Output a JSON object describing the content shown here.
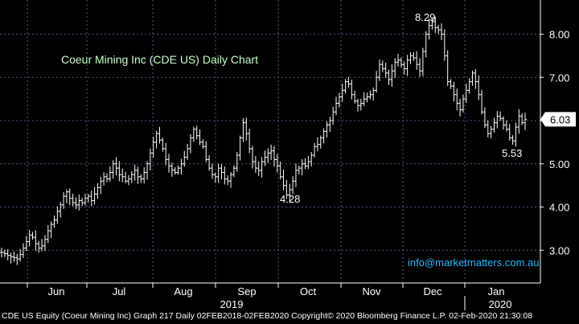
{
  "chart_data": {
    "type": "ohlc",
    "title": "Coeur Mining Inc (CDE US) Daily Chart",
    "ylim": [
      2.3,
      8.9
    ],
    "yticks": [
      "3.00",
      "4.00",
      "5.00",
      "6.00",
      "7.00",
      "8.00"
    ],
    "months": [
      "Jun",
      "Jul",
      "Aug",
      "Sep",
      "Oct",
      "Nov",
      "Dec",
      "Jan"
    ],
    "years": [
      "2019",
      "2020"
    ],
    "last_price": "6.03",
    "annotations": [
      {
        "text": "8.29",
        "value": 8.29
      },
      {
        "text": "4.28",
        "value": 4.28
      },
      {
        "text": "5.53",
        "value": 5.53
      }
    ],
    "series": [
      {
        "values": [
          2.95,
          2.92,
          2.88,
          2.85,
          2.83,
          2.8,
          2.9,
          3.05,
          3.2,
          3.35,
          3.3,
          3.15,
          3.05,
          3.1,
          3.25,
          3.45,
          3.6,
          3.7,
          3.9,
          4.05,
          4.25,
          4.35,
          4.2,
          4.1,
          4.05,
          4.15,
          4.1,
          4.2,
          4.25,
          4.15,
          4.3,
          4.45,
          4.6,
          4.7,
          4.65,
          4.8,
          5.0,
          4.9,
          4.75,
          4.7,
          4.6,
          4.65,
          4.75,
          4.85,
          4.7,
          4.65,
          4.8,
          5.0,
          5.25,
          5.5,
          5.7,
          5.55,
          5.35,
          5.1,
          4.95,
          4.85,
          4.8,
          4.9,
          5.0,
          5.15,
          5.35,
          5.6,
          5.8,
          5.65,
          5.5,
          5.4,
          5.1,
          4.9,
          4.75,
          4.7,
          4.9,
          4.8,
          4.65,
          4.6,
          4.75,
          4.9,
          5.2,
          5.6,
          5.95,
          5.7,
          5.35,
          5.05,
          4.9,
          4.85,
          5.05,
          5.15,
          5.25,
          5.3,
          5.1,
          4.95,
          4.7,
          4.5,
          4.28,
          4.4,
          4.6,
          4.85,
          4.9,
          5.0,
          4.95,
          5.05,
          5.2,
          5.4,
          5.45,
          5.6,
          5.75,
          5.9,
          6.0,
          6.2,
          6.4,
          6.55,
          6.7,
          6.9,
          6.85,
          6.6,
          6.45,
          6.35,
          6.4,
          6.5,
          6.55,
          6.6,
          6.7,
          7.0,
          7.3,
          7.2,
          7.1,
          6.95,
          7.15,
          7.35,
          7.4,
          7.3,
          7.2,
          7.4,
          7.5,
          7.45,
          7.3,
          7.15,
          7.6,
          8.0,
          8.2,
          8.29,
          8.15,
          8.1,
          8.0,
          7.5,
          6.9,
          6.8,
          6.6,
          6.4,
          6.25,
          6.5,
          6.7,
          6.9,
          7.1,
          6.9,
          6.6,
          6.2,
          5.9,
          5.7,
          5.8,
          5.95,
          6.1,
          6.05,
          5.9,
          5.8,
          5.6,
          5.53,
          5.85,
          6.1,
          5.95,
          6.03
        ]
      }
    ]
  },
  "labels": {
    "email": "info@marketmatters.com.au",
    "footer": "CDE US Equity (Coeur Mining Inc) Graph 217  Daily 02FEB2018-02FEB2020 Copyright© 2020 Bloomberg Finance L.P. 02-Feb-2020 21:30:08"
  },
  "colors": {
    "background": "#000000",
    "grid": "#4a5a8a",
    "candle": "#ffffff",
    "price_tag": "#ffffff",
    "title": "#c8ffc8",
    "email": "#27b7ff"
  }
}
